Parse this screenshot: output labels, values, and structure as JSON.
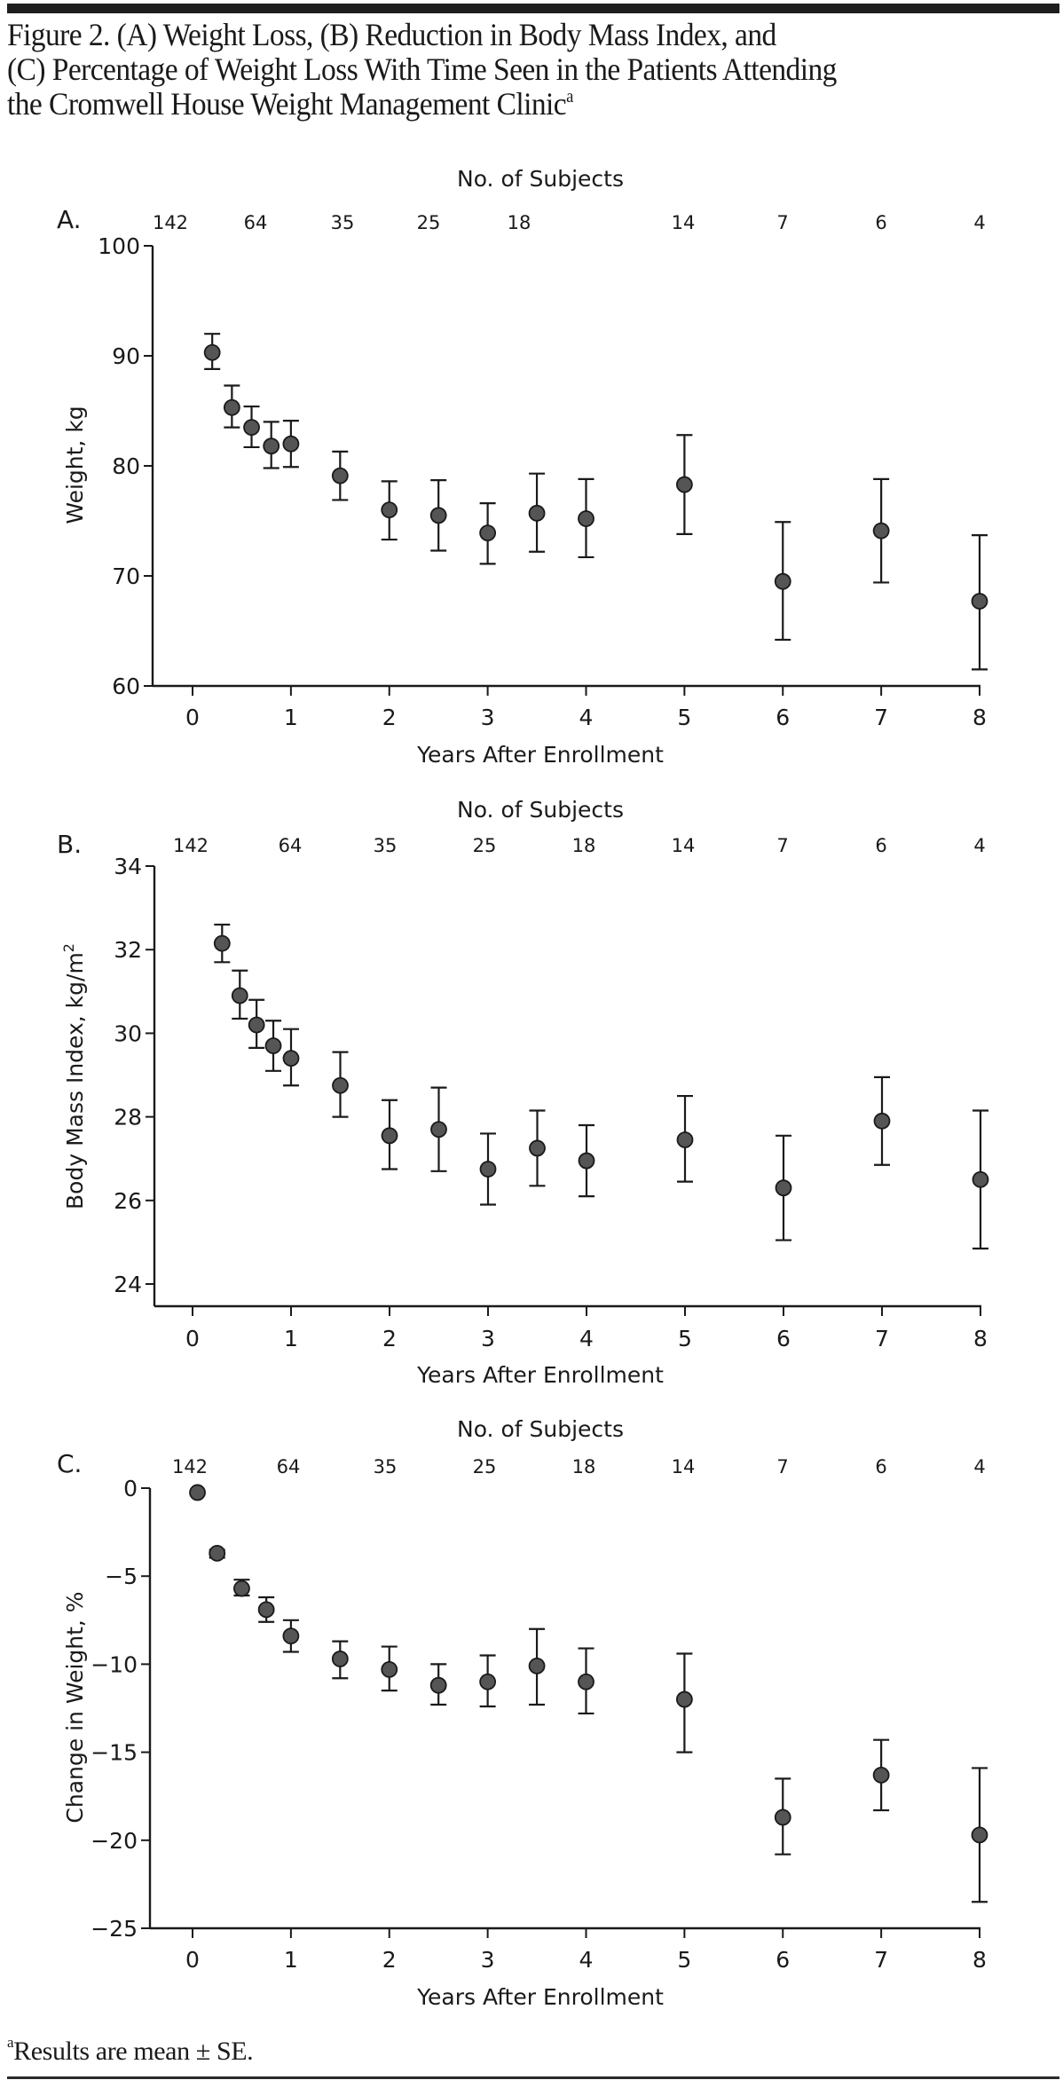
{
  "figure": {
    "title_lines": [
      "Figure 2. (A) Weight Loss, (B) Reduction in Body Mass Index, and",
      "(C) Percentage of Weight Loss With Time Seen in the Patients Attending",
      "the Cromwell House Weight Management Clinic"
    ],
    "title_footnote_marker": "a",
    "footnote_marker": "a",
    "footnote_text": "Results are mean ± SE."
  },
  "colors": {
    "marker_fill": "#555555",
    "ink": "#1a1a1a"
  },
  "chart_data": [
    {
      "type": "scatter",
      "panel_label": "A.",
      "top_axis_title": "No. of Subjects",
      "subject_counts": [
        "142",
        "64",
        "35",
        "25",
        "18",
        "14",
        "7",
        "6",
        "4"
      ],
      "xlabel": "Years After Enrollment",
      "ylabel": "Weight, kg",
      "xlim": [
        0,
        8
      ],
      "ylim": [
        60,
        100
      ],
      "x_ticks": [
        "0",
        "1",
        "2",
        "3",
        "4",
        "5",
        "6",
        "7",
        "8"
      ],
      "y_ticks": [
        "60",
        "70",
        "80",
        "90",
        "100"
      ],
      "grid": false,
      "error_bars": "mean ± SE",
      "series": [
        {
          "name": "Weight",
          "x": [
            0.2,
            0.4,
            0.6,
            0.8,
            1.0,
            1.5,
            2.0,
            2.5,
            3.0,
            3.5,
            4.0,
            5.0,
            6.0,
            7.0,
            8.0
          ],
          "y": [
            90.3,
            85.3,
            83.5,
            81.8,
            82.0,
            79.1,
            76.0,
            75.5,
            73.9,
            75.7,
            75.2,
            78.3,
            69.5,
            74.1,
            67.7
          ],
          "lower": [
            88.8,
            83.5,
            81.7,
            79.8,
            79.9,
            76.9,
            73.3,
            72.3,
            71.1,
            72.2,
            71.7,
            73.8,
            64.2,
            69.4,
            61.5
          ],
          "upper": [
            92.0,
            87.3,
            85.4,
            84.0,
            84.1,
            81.3,
            78.6,
            78.7,
            76.6,
            79.3,
            78.8,
            82.8,
            74.9,
            78.8,
            73.7
          ]
        }
      ]
    },
    {
      "type": "scatter",
      "panel_label": "B.",
      "top_axis_title": "No. of Subjects",
      "subject_counts": [
        "142",
        "64",
        "35",
        "25",
        "18",
        "14",
        "7",
        "6",
        "4"
      ],
      "xlabel": "Years After Enrollment",
      "ylabel": "Body Mass Index, kg/m",
      "ylabel_superscript": "2",
      "xlim": [
        0,
        8
      ],
      "ylim": [
        23.45,
        34
      ],
      "x_ticks": [
        "0",
        "1",
        "2",
        "3",
        "4",
        "5",
        "6",
        "7",
        "8"
      ],
      "y_ticks": [
        "24",
        "26",
        "28",
        "30",
        "32",
        "34"
      ],
      "grid": false,
      "error_bars": "mean ± SE",
      "series": [
        {
          "name": "Body Mass Index",
          "x": [
            0.3,
            0.48,
            0.65,
            0.82,
            1.0,
            1.5,
            2.0,
            2.5,
            3.0,
            3.5,
            4.0,
            5.0,
            6.0,
            7.0,
            8.0
          ],
          "y": [
            32.15,
            30.9,
            30.2,
            29.7,
            29.4,
            28.75,
            27.55,
            27.7,
            26.75,
            27.25,
            26.95,
            27.45,
            26.3,
            27.9,
            26.5
          ],
          "lower": [
            31.7,
            30.35,
            29.65,
            29.1,
            28.75,
            28.0,
            26.75,
            26.7,
            25.9,
            26.35,
            26.1,
            26.45,
            25.05,
            26.85,
            24.85
          ],
          "upper": [
            32.6,
            31.5,
            30.8,
            30.3,
            30.1,
            29.55,
            28.4,
            28.7,
            27.6,
            28.15,
            27.8,
            28.5,
            27.55,
            28.95,
            28.15
          ]
        }
      ]
    },
    {
      "type": "scatter",
      "panel_label": "C.",
      "top_axis_title": "No. of Subjects",
      "subject_counts": [
        "142",
        "64",
        "35",
        "25",
        "18",
        "14",
        "7",
        "6",
        "4"
      ],
      "xlabel": "Years After Enrollment",
      "ylabel": "Change in Weight, %",
      "xlim": [
        0,
        8
      ],
      "ylim": [
        -25,
        0
      ],
      "x_ticks": [
        "0",
        "1",
        "2",
        "3",
        "4",
        "5",
        "6",
        "7",
        "8"
      ],
      "y_ticks": [
        "−25",
        "−20",
        "−15",
        "−10",
        "−5",
        "0"
      ],
      "grid": false,
      "error_bars": "mean ± SE",
      "series": [
        {
          "name": "Change in Weight",
          "x": [
            0.05,
            0.25,
            0.5,
            0.75,
            1.0,
            1.5,
            2.0,
            2.5,
            3.0,
            3.5,
            4.0,
            5.0,
            6.0,
            7.0,
            8.0
          ],
          "y": [
            -0.25,
            -3.7,
            -5.7,
            -6.9,
            -8.4,
            -9.7,
            -10.3,
            -11.2,
            -11.0,
            -10.1,
            -11.0,
            -12.0,
            -18.7,
            -16.3,
            -19.7
          ],
          "lower": [
            -0.25,
            -3.95,
            -6.1,
            -7.6,
            -9.3,
            -10.8,
            -11.5,
            -12.3,
            -12.4,
            -12.3,
            -12.8,
            -15.0,
            -20.8,
            -18.3,
            -23.5
          ],
          "upper": [
            -0.25,
            -3.5,
            -5.2,
            -6.2,
            -7.5,
            -8.7,
            -9.0,
            -10.0,
            -9.5,
            -8.0,
            -9.1,
            -9.4,
            -16.5,
            -14.3,
            -15.9
          ]
        }
      ]
    }
  ]
}
